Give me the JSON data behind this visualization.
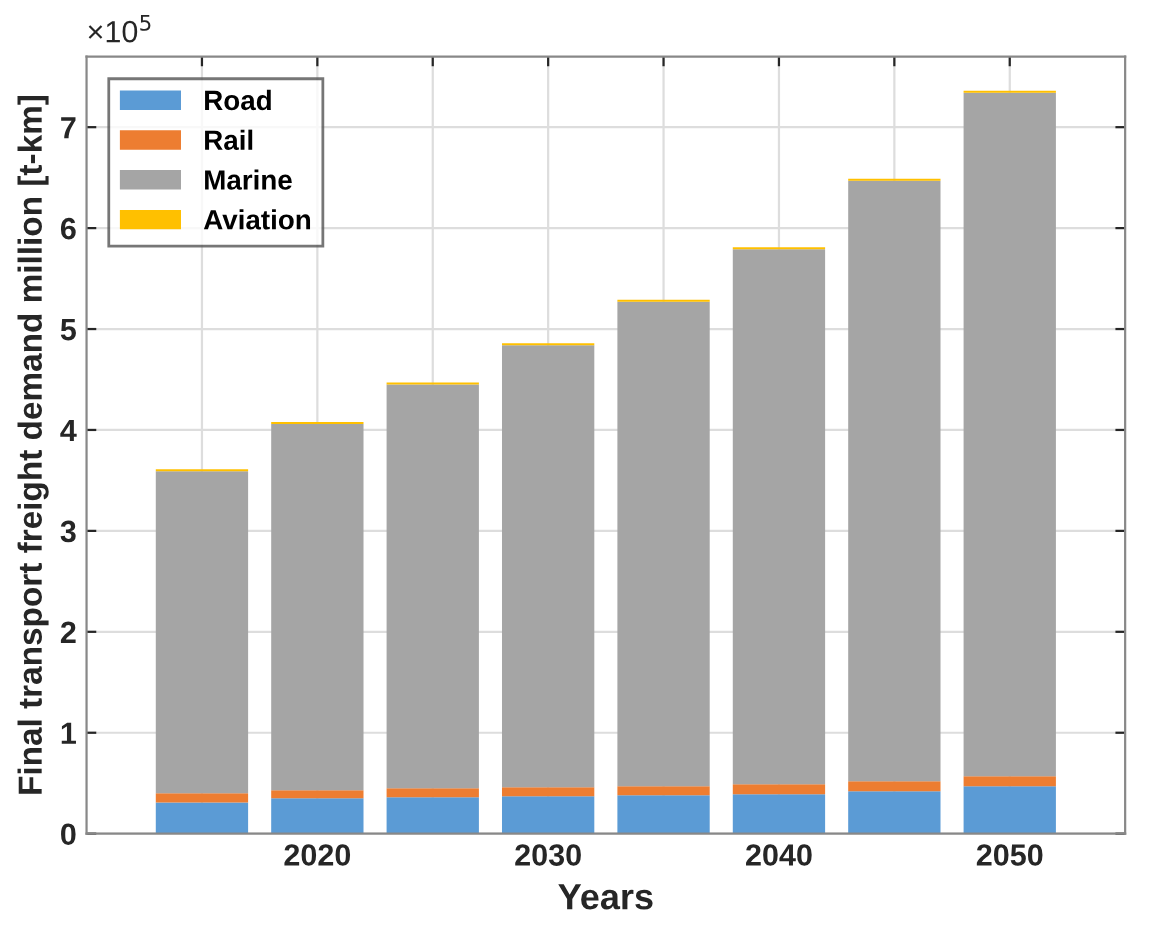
{
  "chart_data": {
    "type": "bar",
    "stacked": true,
    "xlabel": "Years",
    "ylabel": "Final transport freight demand million [t-km]",
    "x": [
      2015,
      2020,
      2025,
      2030,
      2035,
      2040,
      2045,
      2050
    ],
    "series": [
      {
        "name": "Road",
        "color": "#5b9bd5",
        "values": [
          0.31,
          0.35,
          0.36,
          0.37,
          0.38,
          0.39,
          0.42,
          0.47
        ]
      },
      {
        "name": "Rail",
        "color": "#ed7d31",
        "values": [
          0.09,
          0.08,
          0.09,
          0.09,
          0.09,
          0.1,
          0.1,
          0.1
        ]
      },
      {
        "name": "Marine",
        "color": "#a5a5a5",
        "values": [
          3.19,
          3.63,
          4.0,
          4.38,
          4.8,
          5.3,
          5.95,
          6.77
        ]
      },
      {
        "name": "Aviation",
        "color": "#ffc000",
        "values": [
          0.02,
          0.02,
          0.02,
          0.02,
          0.02,
          0.02,
          0.02,
          0.02
        ]
      }
    ],
    "xlim": [
      2010,
      2055
    ],
    "xticks": [
      {
        "value": 2015,
        "label": null
      },
      2020,
      {
        "value": 2025,
        "label": null
      },
      2030,
      {
        "value": 2035,
        "label": null
      },
      2040,
      {
        "value": 2045,
        "label": null
      },
      2050
    ],
    "ylim": [
      0,
      7.7
    ],
    "yticks": [
      0,
      1,
      2,
      3,
      4,
      5,
      6,
      7
    ],
    "annotations": [
      "×10$^{5}$"
    ],
    "grid": true,
    "legend": "top left"
  }
}
